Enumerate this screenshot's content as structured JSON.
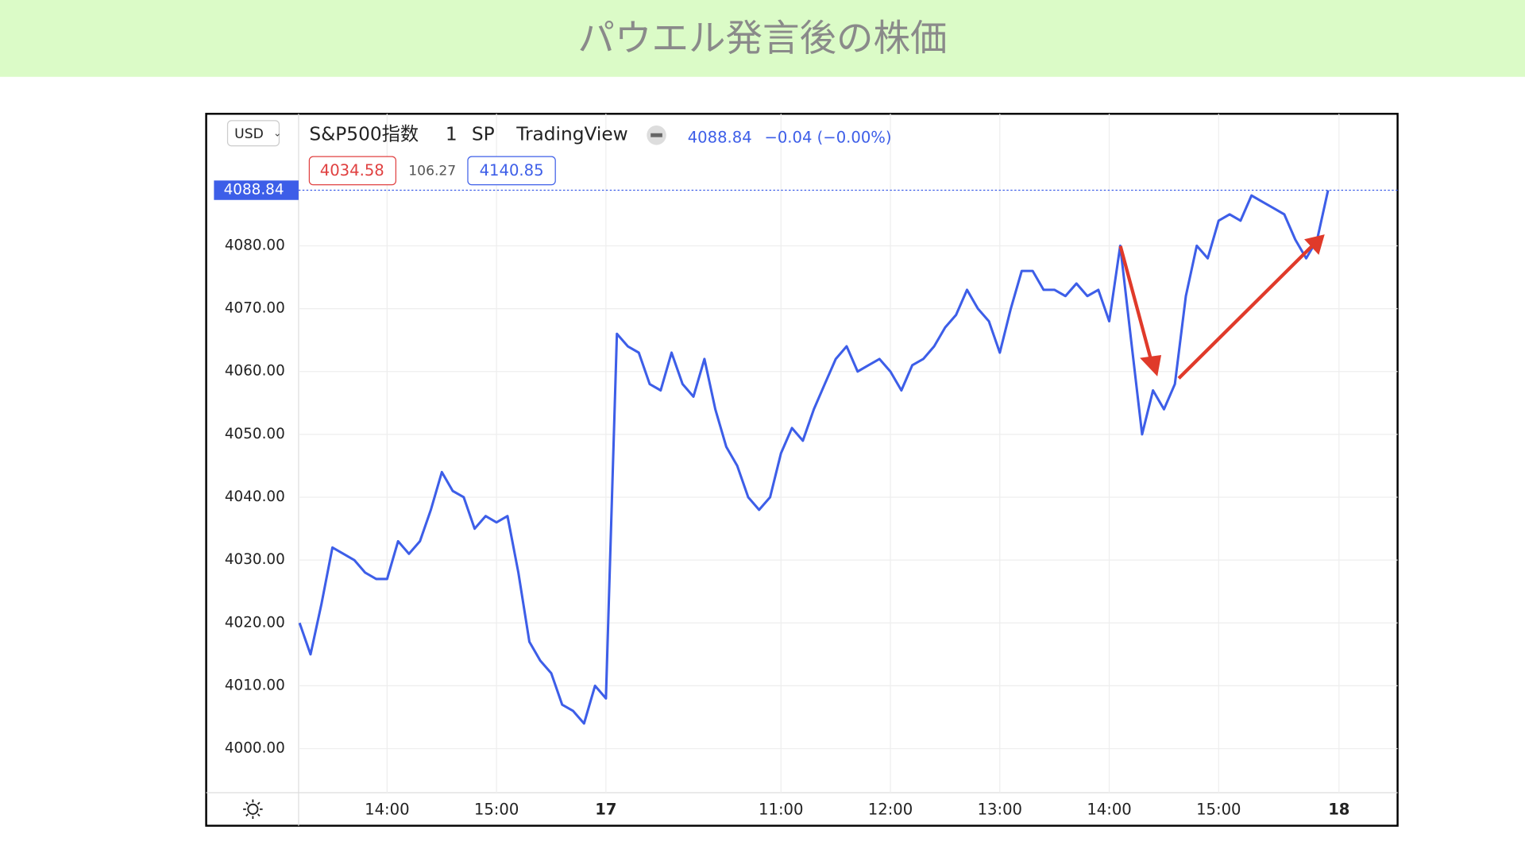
{
  "chart_data": {
    "type": "line",
    "title": "パウエル発言後の株価",
    "symbol": "S&P500指数",
    "interval": "1",
    "exchange": "SP",
    "source": "TradingView",
    "change": "−0.04 (−0.00%)",
    "bid": "4034.58",
    "spread": "106.27",
    "ask": "4140.85",
    "currency": "USD",
    "color": "#3d5ee8",
    "categories": [
      null,
      null,
      null,
      null,
      null,
      null,
      null,
      null,
      "14:00",
      null,
      null,
      null,
      null,
      null,
      null,
      null,
      null,
      null,
      "15:00",
      null,
      null,
      null,
      null,
      null,
      null,
      null,
      null,
      null,
      "17",
      null,
      null,
      null,
      null,
      null,
      null,
      null,
      null,
      null,
      null,
      null,
      null,
      null,
      null,
      null,
      "11:00",
      null,
      null,
      null,
      null,
      null,
      null,
      null,
      null,
      null,
      "12:00",
      null,
      null,
      null,
      null,
      null,
      null,
      null,
      null,
      null,
      "13:00",
      null,
      null,
      null,
      null,
      null,
      null,
      null,
      null,
      null,
      "14:00",
      null,
      null,
      null,
      null,
      null,
      null,
      null,
      null,
      null,
      "15:00",
      null,
      null,
      null,
      null,
      null,
      null,
      null,
      null,
      null,
      null,
      "18"
    ],
    "values": [
      4020,
      4015,
      4023,
      4032,
      4031,
      4030,
      4028,
      4027,
      4027,
      4033,
      4031,
      4033,
      4038,
      4044,
      4041,
      4040,
      4035,
      4037,
      4036,
      4037,
      4028,
      4017,
      4014,
      4012,
      4007,
      4006,
      4004,
      4010,
      4008,
      4066,
      4064,
      4063,
      4058,
      4057,
      4063,
      4058,
      4056,
      4062,
      4054,
      4048,
      4045,
      4040,
      4038,
      4040,
      4047,
      4051,
      4049,
      4054,
      4058,
      4062,
      4064,
      4060,
      4061,
      4062,
      4060,
      4057,
      4061,
      4062,
      4064,
      4067,
      4069,
      4073,
      4070,
      4068,
      4063,
      4070,
      4076,
      4076,
      4073,
      4073,
      4072,
      4074,
      4072,
      4073,
      4068,
      4080,
      4065,
      4050,
      4057,
      4054,
      4058,
      4072,
      4080,
      4078,
      4084,
      4085,
      4084,
      4088,
      4087,
      4086,
      4085,
      4081,
      4078,
      4081,
      4088.84,
      null
    ],
    "ylim": [
      3993,
      4101
    ],
    "yticks": [
      {
        "value": 4000,
        "label": "4000.00"
      },
      {
        "value": 4010,
        "label": "4010.00"
      },
      {
        "value": 4020,
        "label": "4020.00"
      },
      {
        "value": 4030,
        "label": "4030.00"
      },
      {
        "value": 4040,
        "label": "4040.00"
      },
      {
        "value": 4050,
        "label": "4050.00"
      },
      {
        "value": 4060,
        "label": "4060.00"
      },
      {
        "value": 4070,
        "label": "4070.00"
      },
      {
        "value": 4080,
        "label": "4080.00"
      }
    ],
    "grid": true
  }
}
